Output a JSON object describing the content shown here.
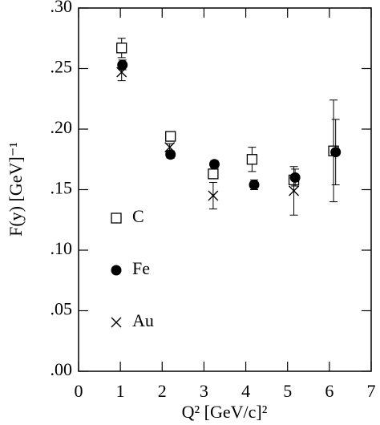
{
  "chart_data": {
    "type": "scatter",
    "xlabel": "Q² [GeV/c]²",
    "ylabel": "F(y) [GeV]⁻¹",
    "xlim": [
      0,
      7
    ],
    "xticks": [
      0,
      1,
      2,
      3,
      4,
      5,
      6,
      7
    ],
    "ylim": [
      0,
      0.3
    ],
    "yticks": [
      {
        "value": 0,
        "label": ".00"
      },
      {
        "value": 0.05,
        "label": ".05"
      },
      {
        "value": 0.1,
        "label": ".10"
      },
      {
        "value": 0.15,
        "label": ".15"
      },
      {
        "value": 0.2,
        "label": ".20"
      },
      {
        "value": 0.25,
        "label": ".25"
      },
      {
        "value": 0.3,
        "label": ".30"
      }
    ],
    "series": [
      {
        "name": "C",
        "color": "#000000",
        "marker": "square-open",
        "x": [
          1.03,
          2.2,
          3.22,
          4.15,
          5.15,
          6.1
        ],
        "values": [
          0.267,
          0.194,
          0.163,
          0.175,
          0.158,
          0.182
        ],
        "errors": [
          0.008,
          0.003,
          0.003,
          0.01,
          0.004,
          0.042
        ]
      },
      {
        "name": "Fe",
        "color": "#000000",
        "marker": "circle-filled",
        "x": [
          1.05,
          2.2,
          3.25,
          4.2,
          5.18,
          6.15
        ],
        "values": [
          0.253,
          0.179,
          0.171,
          0.154,
          0.16,
          0.181
        ],
        "errors": [
          0.004,
          0.003,
          0.003,
          0.004,
          0.007,
          0.027
        ]
      },
      {
        "name": "Au",
        "color": "#000000",
        "marker": "x",
        "x": [
          1.03,
          2.18,
          3.22,
          5.15
        ],
        "values": [
          0.247,
          0.185,
          0.145,
          0.149
        ],
        "errors": [
          0.007,
          0.003,
          0.011,
          0.02
        ]
      }
    ]
  }
}
